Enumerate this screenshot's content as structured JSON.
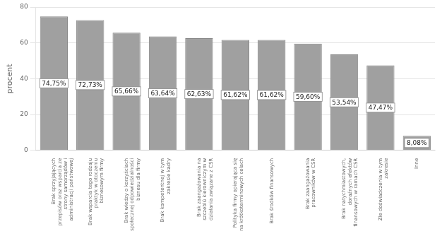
{
  "chart_data": {
    "type": "bar",
    "categories": [
      "Brak sprzyjających\nprzepisów oraz wsparcia ze\nstrony samorządów i\nadministracji państwowej",
      "Brak wsparcia tego rodzaju\npraktyk w otoczeniu\nbiznesowym firmy",
      "Brak wiedzy o korzyściach\nspołecznej odpowiedzialności\nbiznesu dla firmy",
      "Brak kompetentnej w tym\nzakresie kadry",
      "Brak zaangażowania na\nszczeblü kierowniczym w\ndziałania związane z CSR",
      "Polityka firmy opierająca się\nna krótkoterminowych celach",
      "Brak środków finansowych",
      "Brak zaangażowania\npracowników w CSR",
      "Brak natychmiastowych,\ndoraźnych efektów\nfinansowych w ramach CSR",
      "Złe doświadczenia w tym\nzakresie",
      "Inne"
    ],
    "values": [
      74.75,
      72.73,
      65.66,
      63.64,
      62.63,
      61.62,
      61.62,
      59.6,
      53.54,
      47.47,
      8.08
    ],
    "value_labels": [
      "74,75%",
      "72,73%",
      "65,66%",
      "63,64%",
      "62,63%",
      "61,62%",
      "61,62%",
      "59,60%",
      "53,54%",
      "47,47%",
      "8,08%"
    ],
    "data_labels": true,
    "color": "#a0a0a0",
    "ylabel": "procent",
    "ylim": [
      0,
      80
    ],
    "yticks": [
      0,
      20,
      40,
      60,
      80
    ],
    "grid": true
  }
}
